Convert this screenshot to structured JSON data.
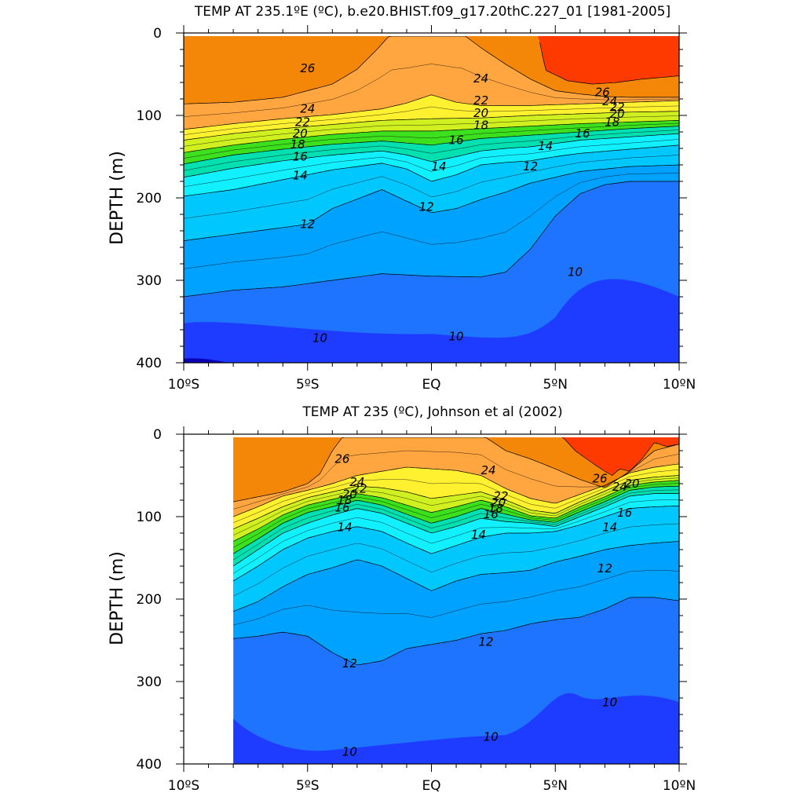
{
  "chart_data": [
    {
      "type": "contour",
      "title": "TEMP AT 235.1ºE (ºC), b.e20.BHIST.f09_g17.20thC.227_01 [1981-2005]",
      "ylabel": "DEPTH (m)",
      "xlim": [
        -10,
        10
      ],
      "ylim": [
        0,
        400
      ],
      "y_inverted": true,
      "x_ticks": [
        {
          "value": -10,
          "label": "10ºS"
        },
        {
          "value": -5,
          "label": "5ºS"
        },
        {
          "value": 0,
          "label": "EQ"
        },
        {
          "value": 5,
          "label": "5ºN"
        },
        {
          "value": 10,
          "label": "10ºN"
        }
      ],
      "y_ticks": [
        {
          "value": 0,
          "label": "0"
        },
        {
          "value": 100,
          "label": "100"
        },
        {
          "value": 200,
          "label": "200"
        },
        {
          "value": 300,
          "label": "300"
        },
        {
          "value": 400,
          "label": "400"
        }
      ],
      "data_xrange": [
        -10,
        10
      ],
      "isotherms": [
        {
          "level": 10,
          "x": [
            -10,
            -8,
            -6,
            -4,
            -2,
            0,
            2,
            3,
            4,
            5,
            6,
            7,
            8,
            10
          ],
          "depth": [
            320,
            312,
            308,
            300,
            292,
            295,
            296,
            290,
            262,
            222,
            195,
            184,
            180,
            180
          ]
        },
        {
          "level": 12,
          "x": [
            -10,
            -8,
            -6,
            -5,
            -4,
            -2,
            0,
            1,
            2,
            3,
            4,
            5,
            6,
            8,
            10
          ],
          "depth": [
            252,
            244,
            236,
            232,
            213,
            190,
            218,
            213,
            202,
            193,
            182,
            175,
            168,
            162,
            160
          ]
        },
        {
          "level": 14,
          "x": [
            -10,
            -8,
            -6,
            -4,
            -2,
            -1,
            0,
            1,
            2,
            3,
            4,
            5,
            6,
            8,
            10
          ],
          "depth": [
            198,
            190,
            178,
            166,
            158,
            165,
            180,
            172,
            160,
            157,
            155,
            150,
            146,
            141,
            136
          ]
        },
        {
          "level": 16,
          "x": [
            -10,
            -8,
            -6,
            -4,
            -2,
            -1,
            0,
            1,
            2,
            3,
            4,
            5,
            6,
            8,
            10
          ],
          "depth": [
            175,
            164,
            155,
            148,
            143,
            148,
            156,
            150,
            143,
            140,
            138,
            134,
            130,
            126,
            122
          ]
        },
        {
          "level": 18,
          "x": [
            -10,
            -8,
            -6,
            -4,
            -2,
            0,
            2,
            4,
            6,
            8,
            10
          ],
          "depth": [
            159,
            148,
            141,
            135,
            131,
            136,
            128,
            124,
            120,
            116,
            113
          ]
        },
        {
          "level": 20,
          "x": [
            -10,
            -8,
            -6,
            -4,
            -2,
            0,
            2,
            4,
            6,
            8,
            10
          ],
          "depth": [
            145,
            136,
            129,
            123,
            119,
            119,
            116,
            113,
            110,
            108,
            106
          ]
        },
        {
          "level": 22,
          "x": [
            -10,
            -8,
            -6,
            -4,
            -2,
            0,
            2,
            4,
            6,
            8,
            10
          ],
          "depth": [
            130,
            122,
            116,
            111,
            106,
            104,
            103,
            100,
            98,
            96,
            95
          ]
        },
        {
          "level": 24,
          "x": [
            -10,
            -8,
            -6,
            -4,
            -2,
            -1,
            0,
            1,
            2,
            4,
            6,
            8,
            10
          ],
          "depth": [
            117,
            110,
            104,
            99,
            92,
            85,
            75,
            84,
            88,
            88,
            86,
            84,
            82
          ]
        },
        {
          "level": 26,
          "x": [
            -10,
            -8,
            -6,
            -4,
            -3,
            -2.2,
            -1.6,
            -1.1,
            -0.6,
            0,
            0.6,
            1.2,
            2,
            3,
            4,
            5,
            6,
            7,
            8,
            10
          ],
          "depth": [
            86,
            84,
            78,
            62,
            44,
            20,
            0,
            0,
            0,
            0,
            0,
            0,
            18,
            38,
            56,
            70,
            74,
            77,
            78,
            78
          ]
        },
        {
          "level": 28,
          "x": [
            4.3,
            4.6,
            5.5,
            6.5,
            7.5,
            8.5,
            10
          ],
          "depth": [
            0,
            45,
            58,
            62,
            60,
            56,
            52
          ]
        }
      ],
      "labels": [
        {
          "text": "26",
          "x": -5.0,
          "depth": 43
        },
        {
          "text": "24",
          "x": -5.0,
          "depth": 92
        },
        {
          "text": "22",
          "x": -5.2,
          "depth": 108
        },
        {
          "text": "20",
          "x": -5.3,
          "depth": 122
        },
        {
          "text": "18",
          "x": -5.4,
          "depth": 135
        },
        {
          "text": "16",
          "x": -5.3,
          "depth": 150
        },
        {
          "text": "14",
          "x": -5.3,
          "depth": 173
        },
        {
          "text": "12",
          "x": -5.0,
          "depth": 232
        },
        {
          "text": "24",
          "x": 2.0,
          "depth": 55
        },
        {
          "text": "22",
          "x": 2.0,
          "depth": 82
        },
        {
          "text": "20",
          "x": 2.0,
          "depth": 97
        },
        {
          "text": "18",
          "x": 2.0,
          "depth": 112
        },
        {
          "text": "16",
          "x": 1.0,
          "depth": 130
        },
        {
          "text": "14",
          "x": 0.3,
          "depth": 162
        },
        {
          "text": "12",
          "x": -0.2,
          "depth": 211
        },
        {
          "text": "26",
          "x": 6.9,
          "depth": 72
        },
        {
          "text": "24",
          "x": 7.2,
          "depth": 83
        },
        {
          "text": "22",
          "x": 7.5,
          "depth": 90
        },
        {
          "text": "20",
          "x": 7.5,
          "depth": 98
        },
        {
          "text": "18",
          "x": 7.3,
          "depth": 108
        },
        {
          "text": "16",
          "x": 6.1,
          "depth": 122
        },
        {
          "text": "14",
          "x": 4.6,
          "depth": 137
        },
        {
          "text": "12",
          "x": 4.0,
          "depth": 162
        },
        {
          "text": "10",
          "x": 5.8,
          "depth": 290
        },
        {
          "text": "10",
          "x": -4.5,
          "depth": 370
        },
        {
          "text": "10",
          "x": 1.0,
          "depth": 368
        }
      ]
    },
    {
      "type": "contour",
      "title": "TEMP AT 235 (ºC), Johnson et al (2002)",
      "ylabel": "DEPTH (m)",
      "xlim": [
        -10,
        10
      ],
      "ylim": [
        0,
        400
      ],
      "y_inverted": true,
      "x_ticks": [
        {
          "value": -10,
          "label": "10ºS"
        },
        {
          "value": -5,
          "label": "5ºS"
        },
        {
          "value": 0,
          "label": "EQ"
        },
        {
          "value": 5,
          "label": "5ºN"
        },
        {
          "value": 10,
          "label": "10ºN"
        }
      ],
      "y_ticks": [
        {
          "value": 0,
          "label": "0"
        },
        {
          "value": 100,
          "label": "100"
        },
        {
          "value": 200,
          "label": "200"
        },
        {
          "value": 300,
          "label": "300"
        },
        {
          "value": 400,
          "label": "400"
        }
      ],
      "data_xrange": [
        -8,
        10
      ],
      "isotherms": [
        {
          "level": 10,
          "x": [
            -8,
            -7,
            -6,
            -5,
            -4,
            -3,
            -2,
            -1,
            0,
            1,
            2,
            3,
            4,
            5,
            6,
            7,
            8,
            9,
            10
          ],
          "depth": [
            248,
            245,
            240,
            245,
            265,
            280,
            275,
            260,
            255,
            250,
            242,
            238,
            230,
            225,
            222,
            212,
            198,
            198,
            202
          ]
        },
        {
          "level": 12,
          "x": [
            -8,
            -7,
            -6,
            -5,
            -4,
            -3,
            -2,
            -1,
            0,
            1,
            2,
            3,
            4,
            5,
            6,
            7,
            8,
            9,
            10
          ],
          "depth": [
            215,
            203,
            185,
            170,
            162,
            152,
            160,
            175,
            190,
            178,
            170,
            168,
            165,
            155,
            148,
            140,
            135,
            132,
            130
          ]
        },
        {
          "level": 14,
          "x": [
            -8,
            -7,
            -6,
            -5,
            -4,
            -3,
            -2,
            -1,
            0,
            1,
            2,
            3,
            4,
            5,
            6,
            7,
            8,
            9,
            10
          ],
          "depth": [
            178,
            160,
            140,
            126,
            118,
            112,
            118,
            132,
            145,
            135,
            125,
            120,
            120,
            118,
            110,
            100,
            90,
            88,
            87
          ]
        },
        {
          "level": 16,
          "x": [
            -8,
            -7,
            -6,
            -5,
            -4,
            -3,
            -2,
            -1,
            0,
            1,
            2,
            3,
            4,
            5,
            6,
            7,
            8,
            9,
            10
          ],
          "depth": [
            160,
            140,
            120,
            108,
            98,
            90,
            96,
            108,
            120,
            112,
            102,
            106,
            108,
            112,
            100,
            88,
            75,
            72,
            72
          ]
        },
        {
          "level": 18,
          "x": [
            -8,
            -7,
            -6,
            -5,
            -4,
            -3,
            -2,
            -1,
            0,
            1,
            2,
            3,
            4,
            5,
            6,
            7,
            8,
            9,
            10
          ],
          "depth": [
            145,
            127,
            108,
            95,
            88,
            80,
            86,
            97,
            108,
            100,
            90,
            97,
            104,
            107,
            94,
            82,
            68,
            64,
            63
          ]
        },
        {
          "level": 20,
          "x": [
            -8,
            -7,
            -6,
            -5,
            -4,
            -3,
            -2,
            -1,
            0,
            1,
            2,
            3,
            4,
            5,
            6,
            7,
            8,
            9,
            10
          ],
          "depth": [
            130,
            115,
            98,
            86,
            79,
            72,
            77,
            86,
            95,
            88,
            80,
            88,
            99,
            102,
            88,
            76,
            62,
            58,
            56
          ]
        },
        {
          "level": 22,
          "x": [
            -8,
            -7,
            -6,
            -5,
            -4,
            -3,
            -2,
            -1,
            0,
            1,
            2,
            3,
            4,
            5,
            6,
            7,
            8,
            9,
            10
          ],
          "depth": [
            115,
            102,
            88,
            77,
            70,
            63,
            65,
            70,
            78,
            74,
            70,
            80,
            92,
            96,
            82,
            69,
            56,
            52,
            50
          ]
        },
        {
          "level": 24,
          "x": [
            -8,
            -7,
            -6,
            -5,
            -4,
            -3,
            -2,
            -1,
            0,
            1,
            2,
            3,
            4,
            5,
            6,
            7,
            8,
            9,
            10
          ],
          "depth": [
            100,
            88,
            75,
            68,
            60,
            50,
            45,
            40,
            42,
            44,
            50,
            66,
            78,
            84,
            73,
            62,
            47,
            40,
            36
          ]
        },
        {
          "level": 26,
          "x": [
            -8,
            -7,
            -6,
            -5,
            -4.5,
            -4,
            -3.5,
            -3,
            -2,
            -1,
            0,
            1,
            2,
            3,
            4,
            5,
            6,
            7,
            8,
            9,
            10
          ],
          "depth": [
            82,
            76,
            70,
            60,
            48,
            20,
            0,
            0,
            0,
            0,
            0,
            0,
            0,
            20,
            30,
            42,
            55,
            65,
            45,
            20,
            12
          ]
        },
        {
          "level": 28,
          "x": [
            5.2,
            5.8,
            6.5,
            7,
            7.3,
            7.6,
            8,
            8.5,
            9,
            9.5,
            10
          ],
          "depth": [
            0,
            20,
            35,
            45,
            50,
            42,
            45,
            30,
            10,
            15,
            12
          ]
        }
      ],
      "labels": [
        {
          "text": "26",
          "x": -3.6,
          "depth": 30
        },
        {
          "text": "24",
          "x": -3.0,
          "depth": 58
        },
        {
          "text": "22",
          "x": -2.9,
          "depth": 66
        },
        {
          "text": "20",
          "x": -3.3,
          "depth": 73
        },
        {
          "text": "18",
          "x": -3.5,
          "depth": 80
        },
        {
          "text": "16",
          "x": -3.6,
          "depth": 89
        },
        {
          "text": "14",
          "x": -3.5,
          "depth": 113
        },
        {
          "text": "12",
          "x": -3.3,
          "depth": 278
        },
        {
          "text": "24",
          "x": 2.3,
          "depth": 44
        },
        {
          "text": "22",
          "x": 2.8,
          "depth": 75
        },
        {
          "text": "20",
          "x": 2.7,
          "depth": 83
        },
        {
          "text": "18",
          "x": 2.6,
          "depth": 90
        },
        {
          "text": "16",
          "x": 2.4,
          "depth": 97
        },
        {
          "text": "14",
          "x": 1.9,
          "depth": 122
        },
        {
          "text": "12",
          "x": 7.0,
          "depth": 163
        },
        {
          "text": "12",
          "x": 2.2,
          "depth": 252
        },
        {
          "text": "10",
          "x": 7.2,
          "depth": 325
        },
        {
          "text": "10",
          "x": 2.4,
          "depth": 367
        },
        {
          "text": "10",
          "x": -3.3,
          "depth": 385
        },
        {
          "text": "26",
          "x": 6.8,
          "depth": 54
        },
        {
          "text": "24",
          "x": 7.6,
          "depth": 64
        },
        {
          "text": "20",
          "x": 8.1,
          "depth": 60
        },
        {
          "text": "16",
          "x": 7.8,
          "depth": 95
        },
        {
          "text": "14",
          "x": 7.2,
          "depth": 113
        }
      ]
    }
  ],
  "colors": {
    "background": "#ffffff",
    "below_10": [
      "#0a00b8",
      "#1e3cff",
      "#1f74ff"
    ],
    "10_12": "#00a2ff",
    "12_14": "#00c8ff",
    "14_16": "#10f0ff",
    "16_18": "#00e0b0",
    "18_20": "#3ce01c",
    "20_22": "#d0f020",
    "22_24": "#fff030",
    "24_26": "#ffa640",
    "26_28": "#f58708",
    "above_28": "#ff3a00"
  }
}
